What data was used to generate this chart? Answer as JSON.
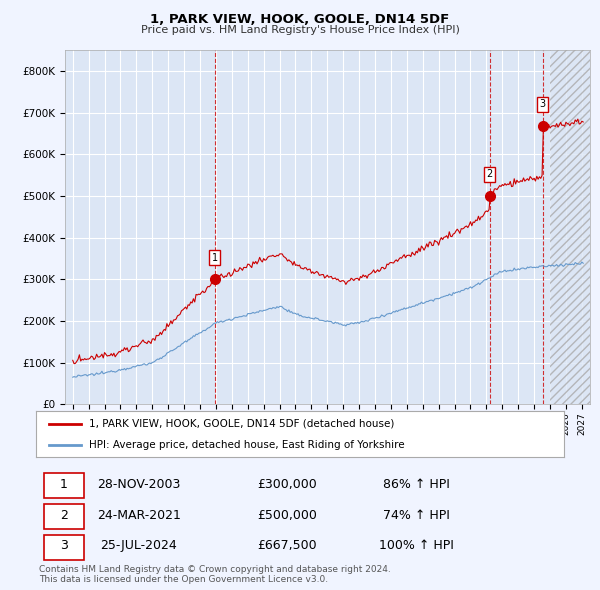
{
  "title": "1, PARK VIEW, HOOK, GOOLE, DN14 5DF",
  "subtitle": "Price paid vs. HM Land Registry's House Price Index (HPI)",
  "ylim": [
    0,
    850000
  ],
  "yticks": [
    0,
    100000,
    200000,
    300000,
    400000,
    500000,
    600000,
    700000,
    800000
  ],
  "ytick_labels": [
    "£0",
    "£100K",
    "£200K",
    "£300K",
    "£400K",
    "£500K",
    "£600K",
    "£700K",
    "£800K"
  ],
  "xlim_start": 1994.5,
  "xlim_end": 2027.5,
  "background_color": "#f0f4ff",
  "plot_bg_color": "#dce6f5",
  "grid_color": "#ffffff",
  "sale_color": "#cc0000",
  "hpi_color": "#6699cc",
  "sale_years": [
    2003.92,
    2021.21,
    2024.54
  ],
  "sale_prices": [
    300000,
    500000,
    667500
  ],
  "sale_labels": [
    "1",
    "2",
    "3"
  ],
  "legend_entries": [
    "1, PARK VIEW, HOOK, GOOLE, DN14 5DF (detached house)",
    "HPI: Average price, detached house, East Riding of Yorkshire"
  ],
  "table_data": [
    [
      "1",
      "28-NOV-2003",
      "£300,000",
      "86% ↑ HPI"
    ],
    [
      "2",
      "24-MAR-2021",
      "£500,000",
      "74% ↑ HPI"
    ],
    [
      "3",
      "25-JUL-2024",
      "£667,500",
      "100% ↑ HPI"
    ]
  ],
  "footer": "Contains HM Land Registry data © Crown copyright and database right 2024.\nThis data is licensed under the Open Government Licence v3.0.",
  "hatch_start": 2025.0
}
